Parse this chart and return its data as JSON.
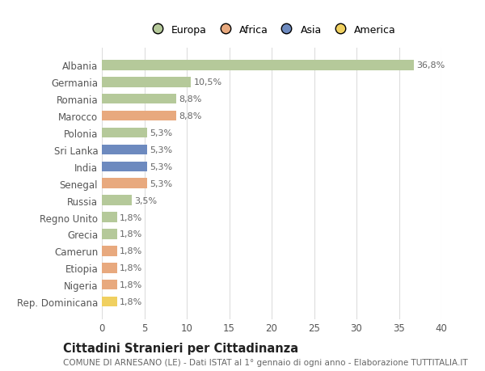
{
  "countries": [
    "Albania",
    "Germania",
    "Romania",
    "Marocco",
    "Polonia",
    "Sri Lanka",
    "India",
    "Senegal",
    "Russia",
    "Regno Unito",
    "Grecia",
    "Camerun",
    "Etiopia",
    "Nigeria",
    "Rep. Dominicana"
  ],
  "values": [
    36.8,
    10.5,
    8.8,
    8.8,
    5.3,
    5.3,
    5.3,
    5.3,
    3.5,
    1.8,
    1.8,
    1.8,
    1.8,
    1.8,
    1.8
  ],
  "labels": [
    "36,8%",
    "10,5%",
    "8,8%",
    "8,8%",
    "5,3%",
    "5,3%",
    "5,3%",
    "5,3%",
    "3,5%",
    "1,8%",
    "1,8%",
    "1,8%",
    "1,8%",
    "1,8%",
    "1,8%"
  ],
  "categories": [
    "Europa",
    "Africa",
    "Asia",
    "America"
  ],
  "continent": [
    "Europa",
    "Europa",
    "Europa",
    "Africa",
    "Europa",
    "Asia",
    "Asia",
    "Africa",
    "Europa",
    "Europa",
    "Europa",
    "Africa",
    "Africa",
    "Africa",
    "America"
  ],
  "colors": {
    "Europa": "#b5c99a",
    "Africa": "#e8a97e",
    "Asia": "#6d8abf",
    "America": "#f0d060"
  },
  "xlim": [
    0,
    40
  ],
  "xticks": [
    0,
    5,
    10,
    15,
    20,
    25,
    30,
    35,
    40
  ],
  "title": "Cittadini Stranieri per Cittadinanza",
  "subtitle": "COMUNE DI ARNESANO (LE) - Dati ISTAT al 1° gennaio di ogni anno - Elaborazione TUTTITALIA.IT",
  "background_color": "#ffffff",
  "grid_color": "#dddddd",
  "label_fontsize": 8,
  "ytick_fontsize": 8.5,
  "xtick_fontsize": 8.5,
  "title_fontsize": 10.5,
  "subtitle_fontsize": 7.5
}
